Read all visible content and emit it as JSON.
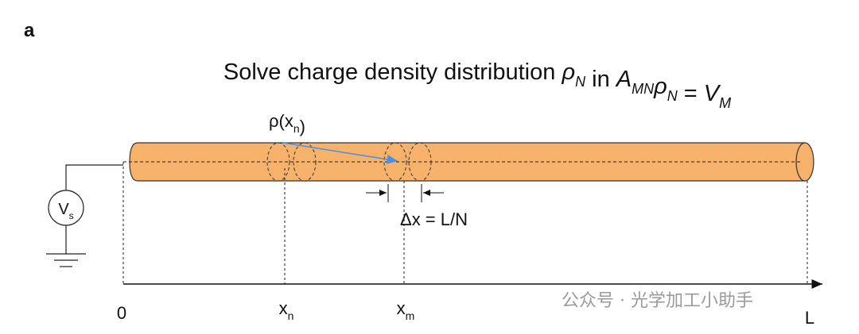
{
  "panel_label": "a",
  "title": [
    {
      "text": "Solve charge density distribution "
    },
    {
      "text": "ρ",
      "sub": "N"
    },
    {
      "text": " in "
    },
    {
      "text": "A",
      "sub": "MN"
    },
    {
      "text": "ρ",
      "sub": "N"
    },
    {
      "text": " = "
    },
    {
      "text": "V",
      "sub": "M"
    }
  ],
  "rho_label": {
    "text": "ρ(x",
    "sub": "n",
    "tail": ")"
  },
  "source_label": {
    "text": "V",
    "sub": "s"
  },
  "delta_label": "Δx = L/N",
  "axis_labels": {
    "origin": "0",
    "xn": {
      "text": "x",
      "sub": "n"
    },
    "xm": {
      "text": "x",
      "sub": "m"
    },
    "end": "L"
  },
  "watermark": "公众号 · 光学加工小助手"
}
